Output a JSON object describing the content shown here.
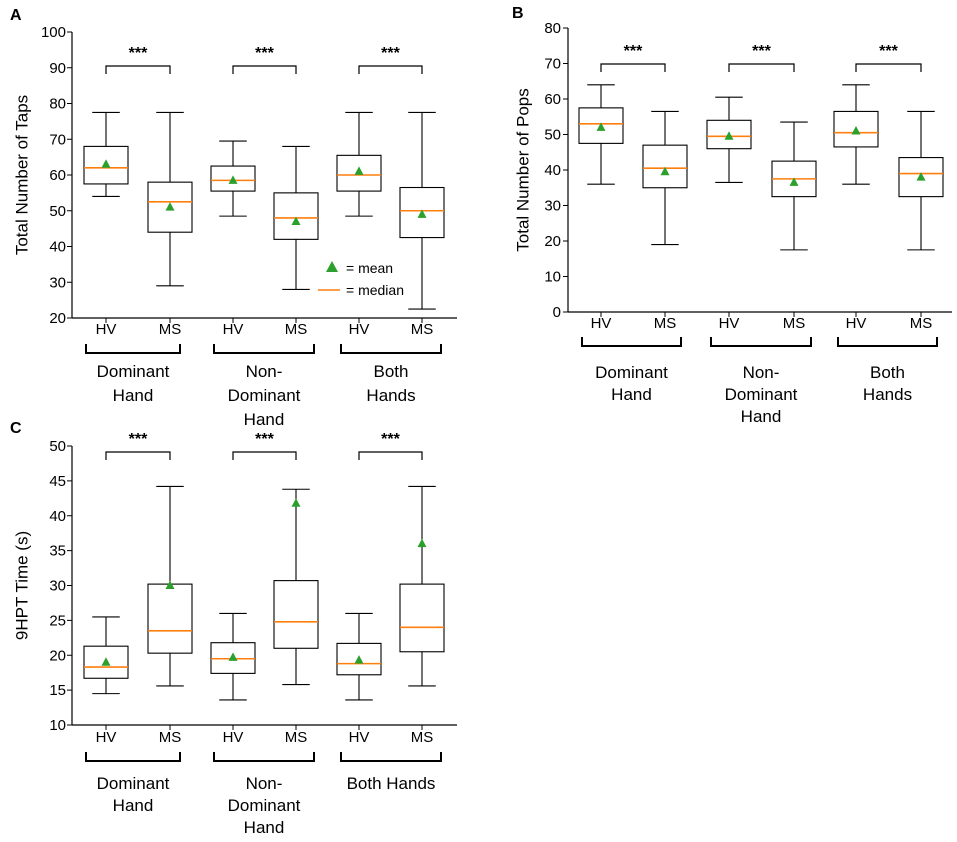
{
  "colors": {
    "median": "#ff7f0e",
    "mean": "#2ca02c",
    "box": "#000000"
  },
  "legend": {
    "mean_label": "= mean",
    "median_label": "= median"
  },
  "chart_data": [
    {
      "type": "boxplot",
      "panel_label": "A",
      "ylabel": "Total Number of Taps",
      "ylim": [
        20,
        100
      ],
      "yticks": [
        20,
        30,
        40,
        50,
        60,
        70,
        80,
        90,
        100
      ],
      "categories": [
        "HV",
        "MS",
        "HV",
        "MS",
        "HV",
        "MS"
      ],
      "groups": [
        {
          "lines": [
            "Dominant",
            "Hand"
          ]
        },
        {
          "lines": [
            "Non-",
            "Dominant",
            "Hand"
          ]
        },
        {
          "lines": [
            "Both",
            "Hands"
          ]
        }
      ],
      "significance": [
        "***",
        "***",
        "***"
      ],
      "show_legend": true,
      "boxes": [
        {
          "min": 54,
          "q1": 57.5,
          "median": 62,
          "q3": 68,
          "max": 77.5,
          "mean": 63
        },
        {
          "min": 29,
          "q1": 44,
          "median": 52.5,
          "q3": 58,
          "max": 77.5,
          "mean": 51
        },
        {
          "min": 48.5,
          "q1": 55.5,
          "median": 58.5,
          "q3": 62.5,
          "max": 69.5,
          "mean": 58.5
        },
        {
          "min": 28,
          "q1": 42,
          "median": 48,
          "q3": 55,
          "max": 68,
          "mean": 47
        },
        {
          "min": 48.5,
          "q1": 55.5,
          "median": 60,
          "q3": 65.5,
          "max": 77.5,
          "mean": 61
        },
        {
          "min": 22.5,
          "q1": 42.5,
          "median": 50,
          "q3": 56.5,
          "max": 77.5,
          "mean": 49
        }
      ]
    },
    {
      "type": "boxplot",
      "panel_label": "B",
      "ylabel": "Total Number of Pops",
      "ylim": [
        0,
        80
      ],
      "yticks": [
        0,
        10,
        20,
        30,
        40,
        50,
        60,
        70,
        80
      ],
      "categories": [
        "HV",
        "MS",
        "HV",
        "MS",
        "HV",
        "MS"
      ],
      "groups": [
        {
          "lines": [
            "Dominant",
            "Hand"
          ]
        },
        {
          "lines": [
            "Non-",
            "Dominant",
            "Hand"
          ]
        },
        {
          "lines": [
            "Both",
            "Hands"
          ]
        }
      ],
      "significance": [
        "***",
        "***",
        "***"
      ],
      "show_legend": false,
      "boxes": [
        {
          "min": 36,
          "q1": 47.5,
          "median": 53,
          "q3": 57.5,
          "max": 64,
          "mean": 52
        },
        {
          "min": 19,
          "q1": 35,
          "median": 40.5,
          "q3": 47,
          "max": 56.5,
          "mean": 39.5
        },
        {
          "min": 36.5,
          "q1": 46,
          "median": 49.5,
          "q3": 54,
          "max": 60.5,
          "mean": 49.5
        },
        {
          "min": 17.5,
          "q1": 32.5,
          "median": 37.5,
          "q3": 42.5,
          "max": 53.5,
          "mean": 36.5
        },
        {
          "min": 36,
          "q1": 46.5,
          "median": 50.5,
          "q3": 56.5,
          "max": 64,
          "mean": 51
        },
        {
          "min": 17.5,
          "q1": 32.5,
          "median": 39,
          "q3": 43.5,
          "max": 56.5,
          "mean": 38
        }
      ]
    },
    {
      "type": "boxplot",
      "panel_label": "C",
      "ylabel": "9HPT Time (s)",
      "ylim": [
        10,
        50
      ],
      "yticks": [
        10,
        15,
        20,
        25,
        30,
        35,
        40,
        45,
        50
      ],
      "categories": [
        "HV",
        "MS",
        "HV",
        "MS",
        "HV",
        "MS"
      ],
      "groups": [
        {
          "lines": [
            "Dominant",
            "Hand"
          ]
        },
        {
          "lines": [
            "Non-",
            "Dominant",
            "Hand"
          ]
        },
        {
          "lines": [
            "Both Hands"
          ]
        }
      ],
      "significance": [
        "***",
        "***",
        "***"
      ],
      "show_legend": false,
      "boxes": [
        {
          "min": 14.5,
          "q1": 16.7,
          "median": 18.3,
          "q3": 21.3,
          "max": 25.5,
          "mean": 19
        },
        {
          "min": 15.6,
          "q1": 20.3,
          "median": 23.5,
          "q3": 30.2,
          "max": 44.2,
          "mean": 30
        },
        {
          "min": 13.6,
          "q1": 17.4,
          "median": 19.5,
          "q3": 21.8,
          "max": 26,
          "mean": 19.7
        },
        {
          "min": 15.8,
          "q1": 21,
          "median": 24.8,
          "q3": 30.7,
          "max": 43.8,
          "mean": 41.8
        },
        {
          "min": 13.6,
          "q1": 17.2,
          "median": 18.8,
          "q3": 21.7,
          "max": 26,
          "mean": 19.3
        },
        {
          "min": 15.6,
          "q1": 20.5,
          "median": 24,
          "q3": 30.2,
          "max": 44.2,
          "mean": 36
        }
      ]
    }
  ]
}
